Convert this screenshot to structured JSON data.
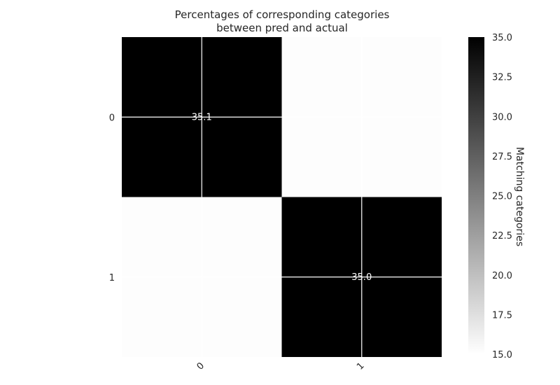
{
  "chart_data": {
    "type": "heatmap",
    "title_lines": [
      "Percentages of corresponding categories",
      "between pred and actual"
    ],
    "x_categories": [
      "0",
      "1"
    ],
    "y_categories": [
      "0",
      "1"
    ],
    "values": [
      [
        35.1,
        15.0
      ],
      [
        15.0,
        35.0
      ]
    ],
    "cell_labels": [
      [
        "35.1",
        ""
      ],
      [
        "",
        "35.0"
      ]
    ],
    "colormap": "Greys",
    "colorbar": {
      "label": "Matching categories",
      "vmin": 15.0,
      "vmax": 35.0,
      "ticks": [
        "15.0",
        "17.5",
        "20.0",
        "22.5",
        "25.0",
        "27.5",
        "30.0",
        "32.5",
        "35.0"
      ]
    },
    "grid": true,
    "grid_color": "#ffffff",
    "low_color": "#ffffff",
    "high_color": "#000000"
  }
}
